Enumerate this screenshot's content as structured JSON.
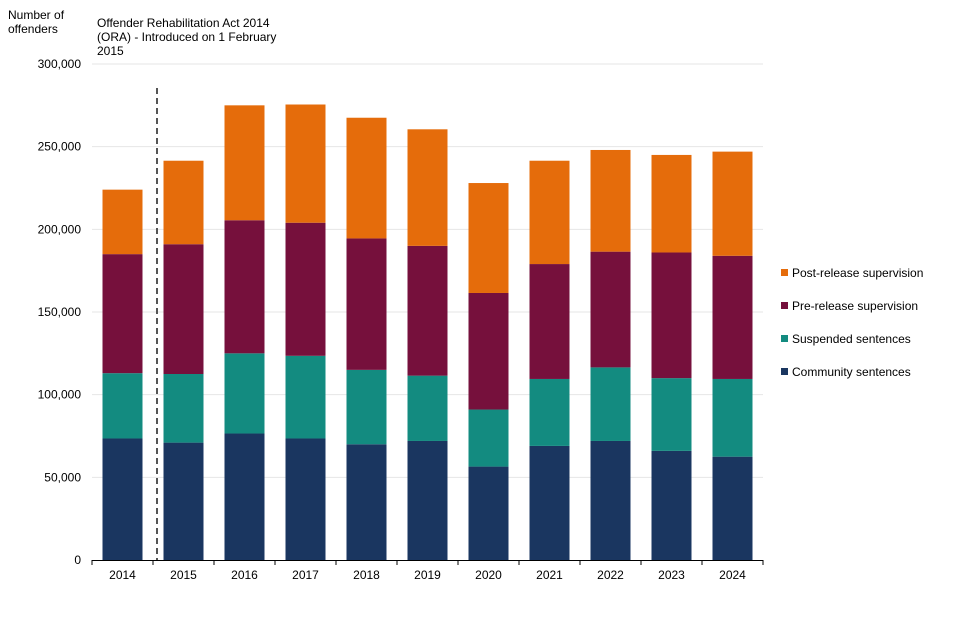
{
  "chart_data": {
    "type": "bar",
    "stacked": true,
    "title": "",
    "ylabel_lines": [
      "Number of",
      "offenders"
    ],
    "xlabel": "",
    "annotation_lines": [
      "Offender Rehabilitation Act 2014",
      "(ORA) - Introduced on 1 February",
      "2015"
    ],
    "annotation_marker": "dashed vertical line between 2014 and 2015",
    "categories": [
      "2014",
      "2015",
      "2016",
      "2017",
      "2018",
      "2019",
      "2020",
      "2021",
      "2022",
      "2023",
      "2024"
    ],
    "ylim": [
      0,
      300000
    ],
    "yticks": [
      0,
      50000,
      100000,
      150000,
      200000,
      250000,
      300000
    ],
    "ytick_labels": [
      "0",
      "50,000",
      "100,000",
      "150,000",
      "200,000",
      "250,000",
      "300,000"
    ],
    "grid": true,
    "legend_position": "right",
    "series": [
      {
        "name": "Community sentences",
        "color": "#1a3660",
        "values": [
          73500,
          71000,
          76500,
          73500,
          70000,
          72000,
          56500,
          69000,
          72000,
          66000,
          62500
        ]
      },
      {
        "name": "Suspended sentences",
        "color": "#138b80",
        "values": [
          39500,
          41500,
          48500,
          50000,
          45000,
          39500,
          34500,
          40500,
          44500,
          44000,
          47000
        ]
      },
      {
        "name": "Pre-release supervision",
        "color": "#76103c",
        "values": [
          72000,
          78500,
          80500,
          80500,
          79500,
          78500,
          70500,
          69500,
          70000,
          76000,
          74500
        ]
      },
      {
        "name": "Post-release supervision",
        "color": "#e56c0b",
        "values": [
          39000,
          50500,
          69500,
          71500,
          73000,
          70500,
          66500,
          62500,
          61500,
          59000,
          63000
        ]
      }
    ]
  }
}
